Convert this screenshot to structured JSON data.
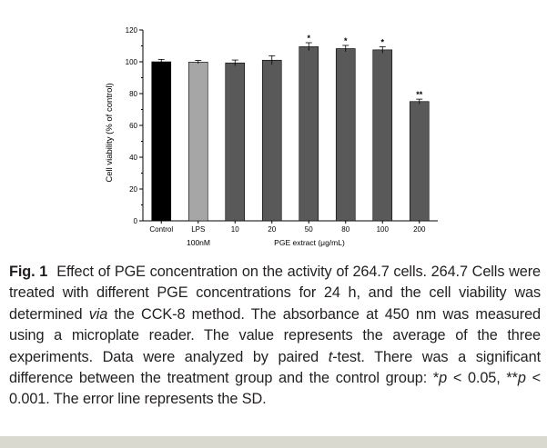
{
  "chart_data": {
    "type": "bar",
    "title": "",
    "ylabel": "Cell viability  (% of control)",
    "xlabel": "PGE extract  (μg/mL)",
    "ylim": [
      0,
      120
    ],
    "yticks": [
      "0",
      "20",
      "40",
      "60",
      "80",
      "100",
      "120"
    ],
    "categories": [
      "Control",
      "LPS",
      "10",
      "20",
      "50",
      "80",
      "100",
      "200"
    ],
    "values": [
      100,
      99.8,
      99.3,
      101,
      109.5,
      108.3,
      107.5,
      75
    ],
    "errors": [
      1.5,
      1.0,
      1.8,
      2.8,
      2.5,
      2.0,
      2.0,
      1.5
    ],
    "significance": [
      "",
      "",
      "",
      "",
      "*",
      "*",
      "*",
      "**"
    ],
    "bar_colors": [
      "#000000",
      "#a6a6a6",
      "#595959",
      "#595959",
      "#595959",
      "#595959",
      "#595959",
      "#595959"
    ],
    "sublabels": {
      "lps_dose": "100nM"
    }
  },
  "caption": {
    "label": "Fig. 1",
    "part1": "Effect of PGE concentration on the activity of 264.7 cells. 264.7 Cells were treated with different PGE concentrations for 24 h, and the cell viability was determined ",
    "via": "via",
    "part2": " the CCK-8 method. The absorbance at 450 nm was measured using a microplate reader. The value represents the average of the three experiments. Data were analyzed by paired ",
    "t": "t",
    "part3": "-test. There was a significant difference between the treatment group and the control group: *",
    "p1": "p",
    "part4": " < 0.05, **",
    "p2": "p",
    "part5": " < 0.001. The error line represents the SD."
  }
}
